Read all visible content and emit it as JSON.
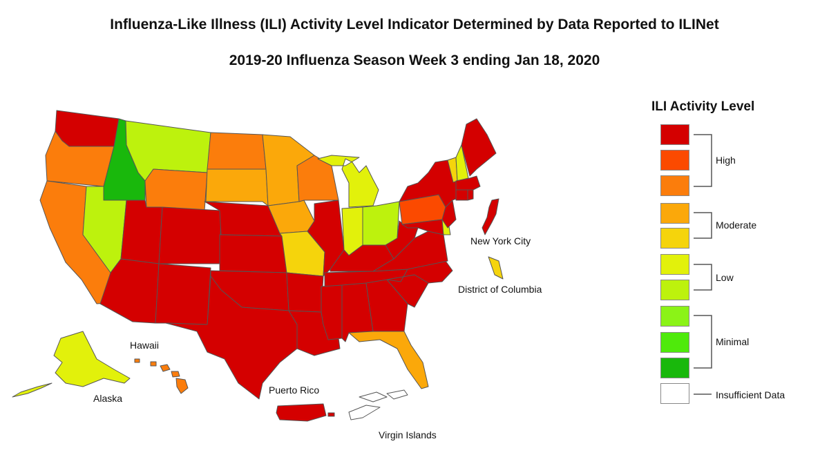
{
  "header": {
    "title": "Influenza-Like Illness (ILI) Activity Level Indicator Determined by Data Reported to ILINet",
    "subtitle": "2019-20 Influenza Season Week 3 ending Jan 18, 2020"
  },
  "levels": {
    "10": "#d40000",
    "9": "#fb4a00",
    "8": "#fb7d0c",
    "7": "#fba80a",
    "6": "#f5d40c",
    "5": "#e2f10b",
    "4": "#bdf20d",
    "3": "#8bf317",
    "2": "#4fea0b",
    "1": "#19b80c",
    "none": "#ffffff"
  },
  "map_labels": {
    "nyc": "New York City",
    "dc": "District of Columbia",
    "hawaii": "Hawaii",
    "alaska": "Alaska",
    "puerto_rico": "Puerto Rico",
    "virgin_islands": "Virgin Islands"
  },
  "legend": {
    "title": "ILI Activity Level",
    "groups": {
      "high": "High",
      "moderate": "Moderate",
      "low": "Low",
      "minimal": "Minimal",
      "insufficient": "Insufficient Data"
    }
  },
  "chart_data": {
    "type": "choropleth",
    "states": {
      "WA": 10,
      "OR": 8,
      "CA": 8,
      "ID": 1,
      "NV": 4,
      "MT": 4,
      "WY": 8,
      "UT": 10,
      "AZ": 10,
      "CO": 10,
      "NM": 10,
      "ND": 8,
      "SD": 7,
      "NE": 10,
      "KS": 10,
      "OK": 10,
      "TX": 10,
      "MN": 7,
      "IA": 7,
      "MO": 6,
      "AR": 10,
      "LA": 10,
      "WI": 8,
      "IL": 10,
      "MI": 5,
      "IN": 5,
      "OH": 4,
      "KY": 10,
      "TN": 10,
      "MS": 10,
      "AL": 10,
      "GA": 10,
      "FL": 7,
      "SC": 10,
      "NC": 10,
      "VA": 10,
      "WV": 10,
      "PA": 9,
      "NY": 10,
      "VT": 6,
      "NH": 5,
      "ME": 10,
      "MA": 10,
      "CT": 10,
      "RI": 10,
      "NJ": 10,
      "DE": 5,
      "MD": 10,
      "AK": 5,
      "HI": 8,
      "PR": 10,
      "VI": "none",
      "NYC": 10,
      "DC": 6
    }
  }
}
